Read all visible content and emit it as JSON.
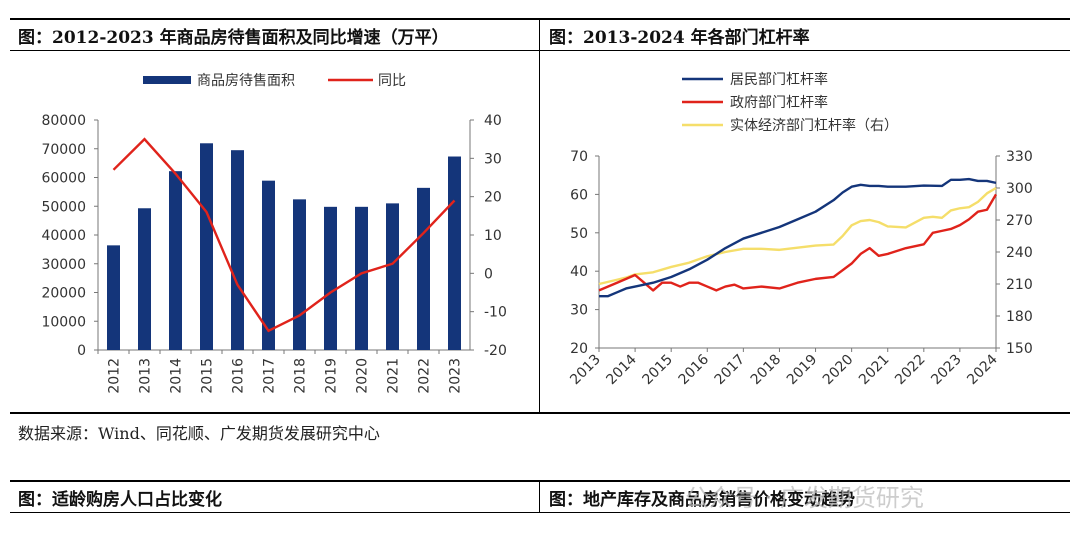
{
  "titles": {
    "left": "图：2012-2023 年商品房待售面积及同比增速（万平）",
    "right": "图：2013-2024 年各部门杠杆率",
    "bottom_left": "图：适龄购房人口占比变化",
    "bottom_right": "图：地产库存及商品房销售价格变动趋势"
  },
  "source": "数据来源：Wind、同花顺、广发期货发展研究中心",
  "watermark": "公众号 · 广发期货研究",
  "colors": {
    "navy": "#14357a",
    "red": "#e0231b",
    "yellow": "#f5de6a"
  },
  "chart_data": [
    {
      "type": "bar",
      "categories": [
        "2012",
        "2013",
        "2014",
        "2015",
        "2016",
        "2017",
        "2018",
        "2019",
        "2020",
        "2021",
        "2022",
        "2023"
      ],
      "series": [
        {
          "name": "商品房待售面积",
          "type": "bar",
          "axis": "left",
          "color": "#14357a",
          "values": [
            36400,
            49300,
            62200,
            71900,
            69500,
            58900,
            52400,
            49800,
            49800,
            51000,
            56400,
            67300
          ]
        },
        {
          "name": "同比",
          "type": "line",
          "axis": "right",
          "color": "#e0231b",
          "values": [
            27,
            35,
            26,
            16,
            -3,
            -15,
            -11,
            -5,
            0,
            2.5,
            10.5,
            19
          ]
        }
      ],
      "ylim_left": [
        0,
        80000
      ],
      "yticks_left": [
        0,
        10000,
        20000,
        30000,
        40000,
        50000,
        60000,
        70000,
        80000
      ],
      "ylim_right": [
        -20,
        40
      ],
      "yticks_right": [
        -20,
        -10,
        0,
        10,
        20,
        30,
        40
      ],
      "legend": "top",
      "grid": false
    },
    {
      "type": "line",
      "x_ticks": [
        "2013",
        "2014",
        "2015",
        "2016",
        "2017",
        "2018",
        "2019",
        "2020",
        "2021",
        "2022",
        "2023",
        "2024"
      ],
      "x_range": [
        2013,
        2024
      ],
      "ylim_left": [
        20,
        70
      ],
      "yticks_left": [
        20,
        30,
        40,
        50,
        60,
        70
      ],
      "ylim_right": [
        150,
        330
      ],
      "yticks_right": [
        150,
        180,
        210,
        240,
        270,
        300,
        330
      ],
      "legend": "top-left",
      "grid": false,
      "series": [
        {
          "name": "居民部门杠杆率",
          "axis": "left",
          "color": "#14357a",
          "x": [
            2013,
            2013.25,
            2013.5,
            2013.75,
            2014,
            2014.5,
            2015,
            2015.5,
            2016,
            2016.5,
            2017,
            2017.5,
            2018,
            2018.5,
            2019,
            2019.5,
            2019.75,
            2020,
            2020.25,
            2020.5,
            2020.75,
            2021,
            2021.5,
            2022,
            2022.5,
            2022.75,
            2023,
            2023.25,
            2023.5,
            2023.75,
            2024
          ],
          "values": [
            33.5,
            33.5,
            34.5,
            35.5,
            36,
            37,
            38.5,
            40.5,
            43,
            46,
            48.5,
            50,
            51.5,
            53.5,
            55.5,
            58.5,
            60.5,
            62,
            62.5,
            62.2,
            62.2,
            62,
            62,
            62.3,
            62.2,
            63.8,
            63.8,
            64,
            63.5,
            63.5,
            63
          ]
        },
        {
          "name": "政府部门杠杆率",
          "axis": "left",
          "color": "#e0231b",
          "x": [
            2013,
            2013.5,
            2013.75,
            2014,
            2014.25,
            2014.5,
            2014.75,
            2015,
            2015.25,
            2015.5,
            2015.75,
            2016,
            2016.25,
            2016.5,
            2016.75,
            2017,
            2017.5,
            2018,
            2018.5,
            2019,
            2019.5,
            2020,
            2020.25,
            2020.5,
            2020.75,
            2021,
            2021.5,
            2022,
            2022.25,
            2022.5,
            2022.75,
            2023,
            2023.25,
            2023.5,
            2023.75,
            2024
          ],
          "values": [
            35,
            37,
            38,
            39,
            37,
            35,
            37,
            37,
            36,
            37,
            37,
            36,
            35,
            36,
            36.5,
            35.5,
            36,
            35.5,
            37,
            38,
            38.5,
            42,
            44.5,
            46,
            44,
            44.5,
            46,
            47,
            50,
            50.5,
            51,
            52,
            53.5,
            55.5,
            56,
            60
          ]
        },
        {
          "name": "实体经济部门杠杆率（右）",
          "axis": "right",
          "color": "#f5de6a",
          "x": [
            2013,
            2013.25,
            2013.5,
            2013.75,
            2014,
            2014.5,
            2015,
            2015.5,
            2016,
            2016.5,
            2017,
            2017.5,
            2018,
            2018.5,
            2019,
            2019.5,
            2019.75,
            2020,
            2020.25,
            2020.5,
            2020.75,
            2021,
            2021.5,
            2022,
            2022.25,
            2022.5,
            2022.75,
            2023,
            2023.25,
            2023.5,
            2023.75,
            2024
          ],
          "values": [
            210,
            212,
            214,
            216,
            219,
            221,
            226,
            230,
            236,
            240,
            243,
            243,
            242,
            244,
            246,
            247,
            255,
            265,
            269,
            270,
            268,
            264,
            263,
            272,
            273,
            272,
            279,
            281,
            282,
            287,
            295,
            300
          ]
        }
      ]
    }
  ]
}
